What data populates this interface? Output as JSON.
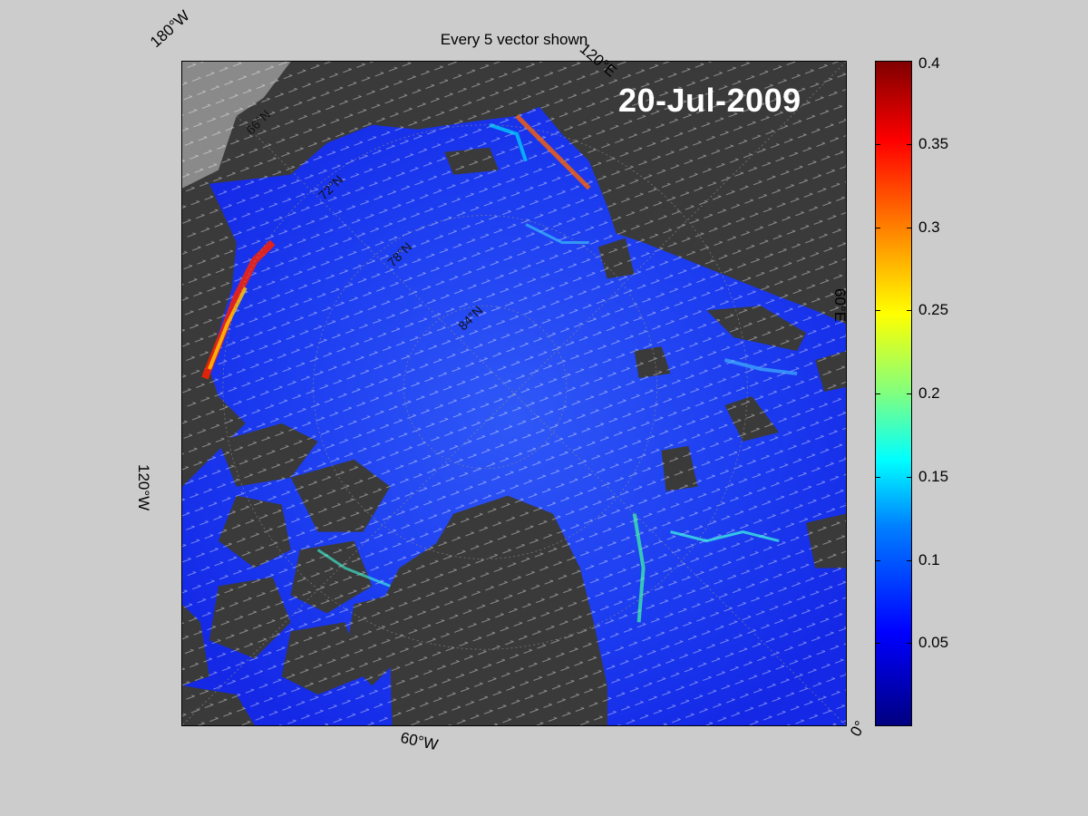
{
  "plot": {
    "title": "Every 5 vector shown",
    "date": "20-Jul-2009",
    "longitude_labels": {
      "lon_180w": "180°W",
      "lon_120e": "120°E",
      "lon_60e": "60°E",
      "lon_120w": "120°W",
      "lon_60w": "60°W",
      "lon_0": "0°"
    },
    "latitude_labels": {
      "lat_66": "66°N",
      "lat_72": "72°N",
      "lat_78": "78°N",
      "lat_84": "84°N"
    }
  },
  "colorbar": {
    "min": 0,
    "max": 0.4,
    "ticks": [
      "0.4",
      "0.35",
      "0.3",
      "0.25",
      "0.2",
      "0.15",
      "0.1",
      "0.05"
    ],
    "tick_values": [
      0.4,
      0.35,
      0.3,
      0.25,
      0.2,
      0.15,
      0.1,
      0.05
    ],
    "colormap": "jet"
  },
  "colors": {
    "figure_background": "#cccccc",
    "land": "#3a3a3a",
    "land_greenland_grey": "#8a8a8a",
    "ocean_base": "#1e3cf0",
    "vector_color": "#ffffff"
  }
}
